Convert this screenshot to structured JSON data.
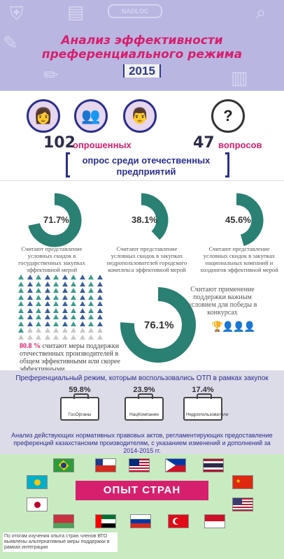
{
  "header": {
    "title": "Анализ эффективности преференциального режима",
    "year": "2015",
    "search_text": "NADLOC"
  },
  "survey": {
    "respondents_num": "102",
    "respondents_label": "опрошенных",
    "questions_num": "47",
    "questions_label": "вопросов",
    "banner": "опрос среди отечественных предприятий"
  },
  "stats": {
    "g1_pct": "71.7%",
    "g1_text": "Считают представление условных скидок в государственных закупках эффективной мерой",
    "g2_pct": "38.1%",
    "g2_text": "Считают представление условных скидок в закупках недропользователей городского комплекса эффективной мерой",
    "g3_pct": "45.6%",
    "g3_text": "Считают представление условных скидок в закупках национальных компаний и холдингов эффективной мерой",
    "support_pct": "80.8 %",
    "support_text": "считают меры поддержки отечественных производителей в общем эффективными или скорее эффективными",
    "win_pct": "76.1%",
    "win_text": "Считают применение поддержки важным условием для победы в конкурсах",
    "gauges": [
      0.717,
      0.381,
      0.456
    ],
    "dots_total": 100,
    "dots_filled": 81,
    "win_fraction": 0.761,
    "accent_color": "#2a8073",
    "dot_color_a": "#3a9d8e",
    "dot_color_b": "#3a5f9d"
  },
  "preferences": {
    "title": "Преференциальный режим, которым воспользовались ОТП в рамках закупок",
    "items": [
      {
        "value": "59.8%",
        "label": "ГосОрганы"
      },
      {
        "value": "23.9%",
        "label": "НацКомпании"
      },
      {
        "value": "17.4%",
        "label": "Недропользователи"
      }
    ],
    "note": "Анализ действующих нормативных правовых актов, регламентирующих предоставление преференций казахстанским производителям, с указанием изменений и дополнений за 2014-2015 гг."
  },
  "countries": {
    "title": "ОПЫТ СТРАН",
    "footnote": "По итогам изучения опыта стран членов ВТО выявлены альтернативные меры поддержки в рамках интеграции"
  }
}
